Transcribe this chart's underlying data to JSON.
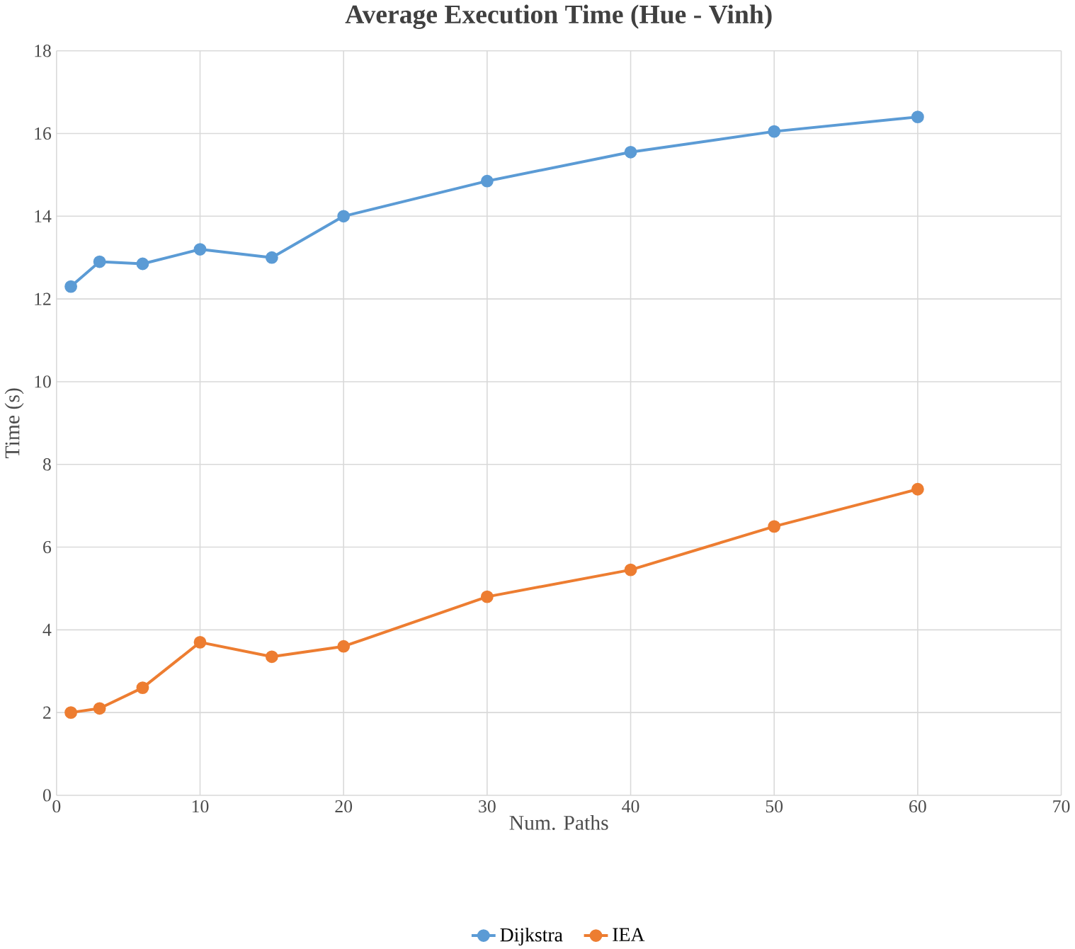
{
  "chart_data": {
    "type": "line",
    "title": "Average Execution Time (Hue - Vinh)",
    "xlabel": "Num. Paths",
    "ylabel": "Time (s)",
    "x": [
      1,
      3,
      6,
      10,
      15,
      20,
      30,
      40,
      50,
      60
    ],
    "series": [
      {
        "name": "Dijkstra",
        "color": "#5b9bd5",
        "values": [
          12.3,
          12.9,
          12.85,
          13.2,
          13.0,
          14.0,
          14.85,
          15.55,
          16.05,
          16.4
        ]
      },
      {
        "name": "IEA",
        "color": "#ed7d31",
        "values": [
          2.0,
          2.1,
          2.6,
          3.7,
          3.35,
          3.6,
          4.8,
          5.45,
          6.5,
          7.4
        ]
      }
    ],
    "xlim": [
      0,
      70
    ],
    "xticks": [
      0,
      10,
      20,
      30,
      40,
      50,
      60,
      70
    ],
    "ylim": [
      0,
      18
    ],
    "yticks": [
      0,
      2,
      4,
      6,
      8,
      10,
      12,
      14,
      16,
      18
    ],
    "grid": true,
    "legend": "bottom",
    "marker": "circle",
    "line_style": "solid"
  }
}
